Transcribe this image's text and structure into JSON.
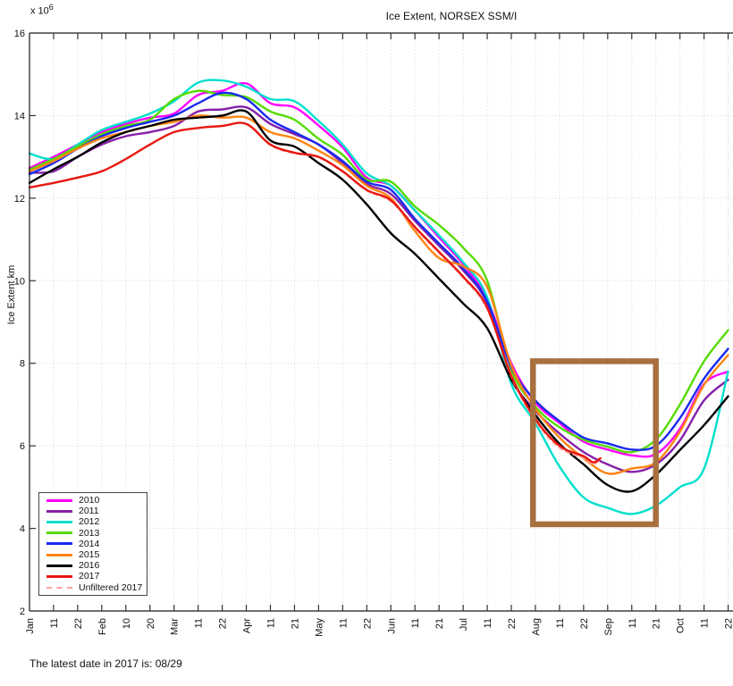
{
  "title": "Ice Extent, NORSEX SSM/I",
  "footer_note": "The latest date in 2017 is: 08/29",
  "y_axis": {
    "label": "Ice Extent km",
    "multiplier_base": "x 10",
    "multiplier_exp": "6",
    "tick_labels": [
      "16",
      "14",
      "12",
      "10",
      "8",
      "6",
      "4",
      "2"
    ],
    "min": 2,
    "max": 16
  },
  "x_axis": {
    "tick_labels": [
      "Jan",
      "11",
      "22",
      "Feb",
      "10",
      "20",
      "Mar",
      "11",
      "22",
      "Apr",
      "11",
      "21",
      "May",
      "11",
      "22",
      "Jun",
      "11",
      "21",
      "Jul",
      "11",
      "22",
      "Aug",
      "11",
      "22",
      "Sep",
      "11",
      "21",
      "Oct",
      "11",
      "22"
    ]
  },
  "colors": {
    "axis": "#1a1a1a",
    "grid": "#e0e0e0",
    "text": "#111111",
    "highlight_box": "#A9703F"
  },
  "highlight_box": {
    "x_start_tick": 20.9,
    "x_end_tick": 26.0,
    "y_top_value": 8.05,
    "y_bottom_value": 4.1
  },
  "legend": {
    "items": [
      {
        "label": "2010",
        "color": "#FF00FF",
        "dash": false
      },
      {
        "label": "2011",
        "color": "#8520A8",
        "dash": false
      },
      {
        "label": "2012",
        "color": "#00E0CC",
        "dash": false
      },
      {
        "label": "2013",
        "color": "#55DB00",
        "dash": false
      },
      {
        "label": "2014",
        "color": "#1A2AEE",
        "dash": false
      },
      {
        "label": "2015",
        "color": "#FF8412",
        "dash": false
      },
      {
        "label": "2016",
        "color": "#000000",
        "dash": false
      },
      {
        "label": "2017",
        "color": "#E81710",
        "dash": false
      },
      {
        "label": "Unfiltered 2017",
        "color": "#FFA0A0",
        "dash": true
      }
    ]
  },
  "chart_data": {
    "type": "line",
    "title": "Ice Extent, NORSEX SSM/I",
    "xlabel": "",
    "ylabel": "Ice Extent km",
    "units_note": "values are millions of km (y axis scaled x 10^6)",
    "ylim": [
      2,
      16
    ],
    "grid": true,
    "legend_position": "lower-left",
    "x_tick_labels": [
      "Jan",
      "11",
      "22",
      "Feb",
      "10",
      "20",
      "Mar",
      "11",
      "22",
      "Apr",
      "11",
      "21",
      "May",
      "11",
      "22",
      "Jun",
      "11",
      "21",
      "Jul",
      "11",
      "22",
      "Aug",
      "11",
      "22",
      "Sep",
      "11",
      "21",
      "Oct",
      "11",
      "22"
    ],
    "x_note": "x values below are tick indices; one tick per ~10 days from Jan 1 to Oct 22",
    "series": [
      {
        "name": "2010",
        "color": "#FF00FF",
        "dash": false,
        "width": 2.4,
        "points": [
          [
            0,
            12.73
          ],
          [
            1,
            13.0
          ],
          [
            2,
            13.3
          ],
          [
            3,
            13.6
          ],
          [
            4,
            13.8
          ],
          [
            5,
            13.95
          ],
          [
            6,
            14.05
          ],
          [
            7,
            14.5
          ],
          [
            8,
            14.6
          ],
          [
            9,
            14.78
          ],
          [
            10,
            14.3
          ],
          [
            11,
            14.2
          ],
          [
            12,
            13.76
          ],
          [
            13,
            13.23
          ],
          [
            14,
            12.5
          ],
          [
            15,
            12.3
          ],
          [
            16,
            11.7
          ],
          [
            17,
            11.05
          ],
          [
            18,
            10.4
          ],
          [
            19,
            9.55
          ],
          [
            20,
            8.0
          ],
          [
            21,
            7.05
          ],
          [
            22,
            6.55
          ],
          [
            23,
            6.1
          ],
          [
            24,
            5.91
          ],
          [
            25,
            5.77
          ],
          [
            26,
            5.8
          ],
          [
            27,
            6.41
          ],
          [
            28,
            7.5
          ],
          [
            29,
            7.8
          ]
        ]
      },
      {
        "name": "2011",
        "color": "#8520A8",
        "dash": false,
        "width": 2.4,
        "points": [
          [
            0,
            12.62
          ],
          [
            1,
            12.65
          ],
          [
            2,
            13.0
          ],
          [
            3,
            13.3
          ],
          [
            4,
            13.5
          ],
          [
            5,
            13.6
          ],
          [
            6,
            13.75
          ],
          [
            7,
            14.1
          ],
          [
            8,
            14.15
          ],
          [
            9,
            14.2
          ],
          [
            10,
            13.8
          ],
          [
            11,
            13.55
          ],
          [
            12,
            13.3
          ],
          [
            13,
            12.85
          ],
          [
            14,
            12.35
          ],
          [
            15,
            12.1
          ],
          [
            16,
            11.45
          ],
          [
            17,
            10.85
          ],
          [
            18,
            10.25
          ],
          [
            19,
            9.45
          ],
          [
            20,
            7.65
          ],
          [
            21,
            6.85
          ],
          [
            22,
            6.3
          ],
          [
            23,
            5.85
          ],
          [
            24,
            5.55
          ],
          [
            25,
            5.37
          ],
          [
            26,
            5.55
          ],
          [
            27,
            6.13
          ],
          [
            28,
            7.1
          ],
          [
            29,
            7.6
          ]
        ]
      },
      {
        "name": "2012",
        "color": "#00E0CC",
        "dash": false,
        "width": 2.4,
        "points": [
          [
            0,
            13.08
          ],
          [
            1,
            12.95
          ],
          [
            2,
            13.3
          ],
          [
            3,
            13.65
          ],
          [
            4,
            13.85
          ],
          [
            5,
            14.05
          ],
          [
            6,
            14.35
          ],
          [
            7,
            14.8
          ],
          [
            8,
            14.85
          ],
          [
            9,
            14.7
          ],
          [
            10,
            14.4
          ],
          [
            11,
            14.35
          ],
          [
            12,
            13.87
          ],
          [
            13,
            13.3
          ],
          [
            14,
            12.6
          ],
          [
            15,
            12.3
          ],
          [
            16,
            11.7
          ],
          [
            17,
            11.1
          ],
          [
            18,
            10.45
          ],
          [
            19,
            9.6
          ],
          [
            20,
            7.5
          ],
          [
            21,
            6.55
          ],
          [
            22,
            5.5
          ],
          [
            23,
            4.75
          ],
          [
            24,
            4.5
          ],
          [
            25,
            4.35
          ],
          [
            26,
            4.55
          ],
          [
            27,
            5.0
          ],
          [
            28,
            5.45
          ],
          [
            29,
            7.8
          ]
        ]
      },
      {
        "name": "2013",
        "color": "#55DB00",
        "dash": false,
        "width": 2.4,
        "points": [
          [
            0,
            12.69
          ],
          [
            1,
            12.95
          ],
          [
            2,
            13.25
          ],
          [
            3,
            13.55
          ],
          [
            4,
            13.75
          ],
          [
            5,
            13.9
          ],
          [
            6,
            14.4
          ],
          [
            7,
            14.6
          ],
          [
            8,
            14.5
          ],
          [
            9,
            14.45
          ],
          [
            10,
            14.1
          ],
          [
            11,
            13.9
          ],
          [
            12,
            13.44
          ],
          [
            13,
            13.05
          ],
          [
            14,
            12.45
          ],
          [
            15,
            12.4
          ],
          [
            16,
            11.8
          ],
          [
            17,
            11.35
          ],
          [
            18,
            10.8
          ],
          [
            19,
            10.0
          ],
          [
            20,
            7.85
          ],
          [
            21,
            6.95
          ],
          [
            22,
            6.45
          ],
          [
            23,
            6.15
          ],
          [
            24,
            5.98
          ],
          [
            25,
            5.85
          ],
          [
            26,
            6.15
          ],
          [
            27,
            7.0
          ],
          [
            28,
            8.05
          ],
          [
            29,
            8.8
          ]
        ]
      },
      {
        "name": "2014",
        "color": "#1A2AEE",
        "dash": false,
        "width": 2.4,
        "points": [
          [
            0,
            12.58
          ],
          [
            1,
            12.85
          ],
          [
            2,
            13.2
          ],
          [
            3,
            13.5
          ],
          [
            4,
            13.7
          ],
          [
            5,
            13.85
          ],
          [
            6,
            14.0
          ],
          [
            7,
            14.3
          ],
          [
            8,
            14.55
          ],
          [
            9,
            14.4
          ],
          [
            10,
            13.9
          ],
          [
            11,
            13.6
          ],
          [
            12,
            13.3
          ],
          [
            13,
            12.9
          ],
          [
            14,
            12.4
          ],
          [
            15,
            12.2
          ],
          [
            16,
            11.5
          ],
          [
            17,
            10.9
          ],
          [
            18,
            10.3
          ],
          [
            19,
            9.5
          ],
          [
            20,
            7.9
          ],
          [
            21,
            7.1
          ],
          [
            22,
            6.6
          ],
          [
            23,
            6.2
          ],
          [
            24,
            6.06
          ],
          [
            25,
            5.91
          ],
          [
            26,
            6.0
          ],
          [
            27,
            6.67
          ],
          [
            28,
            7.63
          ],
          [
            29,
            8.35
          ]
        ]
      },
      {
        "name": "2015",
        "color": "#FF8412",
        "dash": false,
        "width": 2.4,
        "points": [
          [
            0,
            12.65
          ],
          [
            1,
            12.9
          ],
          [
            2,
            13.2
          ],
          [
            3,
            13.45
          ],
          [
            4,
            13.6
          ],
          [
            5,
            13.75
          ],
          [
            6,
            13.85
          ],
          [
            7,
            14.0
          ],
          [
            8,
            13.95
          ],
          [
            9,
            13.95
          ],
          [
            10,
            13.6
          ],
          [
            11,
            13.45
          ],
          [
            12,
            13.15
          ],
          [
            13,
            12.8
          ],
          [
            14,
            12.3
          ],
          [
            15,
            12.0
          ],
          [
            16,
            11.2
          ],
          [
            17,
            10.55
          ],
          [
            18,
            10.35
          ],
          [
            19,
            9.85
          ],
          [
            20,
            7.95
          ],
          [
            21,
            6.9
          ],
          [
            22,
            6.2
          ],
          [
            23,
            5.7
          ],
          [
            24,
            5.33
          ],
          [
            25,
            5.45
          ],
          [
            26,
            5.6
          ],
          [
            27,
            6.34
          ],
          [
            28,
            7.48
          ],
          [
            29,
            8.2
          ]
        ]
      },
      {
        "name": "2016",
        "color": "#000000",
        "dash": false,
        "width": 2.4,
        "points": [
          [
            0,
            12.37
          ],
          [
            1,
            12.7
          ],
          [
            2,
            13.0
          ],
          [
            3,
            13.35
          ],
          [
            4,
            13.6
          ],
          [
            5,
            13.75
          ],
          [
            6,
            13.9
          ],
          [
            7,
            13.95
          ],
          [
            8,
            14.0
          ],
          [
            9,
            14.1
          ],
          [
            10,
            13.4
          ],
          [
            11,
            13.25
          ],
          [
            12,
            12.85
          ],
          [
            13,
            12.45
          ],
          [
            14,
            11.85
          ],
          [
            15,
            11.15
          ],
          [
            16,
            10.65
          ],
          [
            17,
            10.05
          ],
          [
            18,
            9.45
          ],
          [
            19,
            8.85
          ],
          [
            20,
            7.6
          ],
          [
            21,
            6.75
          ],
          [
            22,
            6.05
          ],
          [
            23,
            5.55
          ],
          [
            24,
            5.05
          ],
          [
            25,
            4.9
          ],
          [
            26,
            5.3
          ],
          [
            27,
            5.9
          ],
          [
            28,
            6.5
          ],
          [
            29,
            7.2
          ]
        ]
      },
      {
        "name": "Unfiltered 2017",
        "color": "#FFA0A0",
        "dash": true,
        "width": 1.7,
        "points": [
          [
            0,
            12.26
          ],
          [
            1,
            12.37
          ],
          [
            2,
            12.5
          ],
          [
            3,
            12.65
          ],
          [
            4,
            12.95
          ],
          [
            5,
            13.3
          ],
          [
            6,
            13.6
          ],
          [
            7,
            13.7
          ],
          [
            8,
            13.75
          ],
          [
            9,
            13.8
          ],
          [
            10,
            13.28
          ],
          [
            11,
            13.08
          ],
          [
            12,
            12.98
          ],
          [
            13,
            12.63
          ],
          [
            14,
            12.18
          ],
          [
            15,
            11.92
          ],
          [
            16,
            11.27
          ],
          [
            17,
            10.67
          ],
          [
            18,
            10.07
          ],
          [
            19,
            9.3
          ],
          [
            20,
            7.66
          ],
          [
            21,
            6.6
          ],
          [
            22,
            5.95
          ],
          [
            23,
            5.7
          ],
          [
            23.4,
            5.56
          ],
          [
            23.7,
            5.66
          ]
        ]
      },
      {
        "name": "2017",
        "color": "#E81710",
        "dash": false,
        "width": 2.4,
        "points": [
          [
            0,
            12.26
          ],
          [
            1,
            12.37
          ],
          [
            2,
            12.5
          ],
          [
            3,
            12.65
          ],
          [
            4,
            12.95
          ],
          [
            5,
            13.3
          ],
          [
            6,
            13.6
          ],
          [
            7,
            13.7
          ],
          [
            8,
            13.75
          ],
          [
            9,
            13.8
          ],
          [
            10,
            13.3
          ],
          [
            11,
            13.1
          ],
          [
            12,
            13.0
          ],
          [
            13,
            12.65
          ],
          [
            14,
            12.2
          ],
          [
            15,
            11.95
          ],
          [
            16,
            11.3
          ],
          [
            17,
            10.7
          ],
          [
            18,
            10.1
          ],
          [
            19,
            9.35
          ],
          [
            20,
            7.7
          ],
          [
            21,
            6.65
          ],
          [
            22,
            6.0
          ],
          [
            23,
            5.75
          ],
          [
            23.4,
            5.6
          ],
          [
            23.7,
            5.7
          ]
        ]
      }
    ]
  }
}
